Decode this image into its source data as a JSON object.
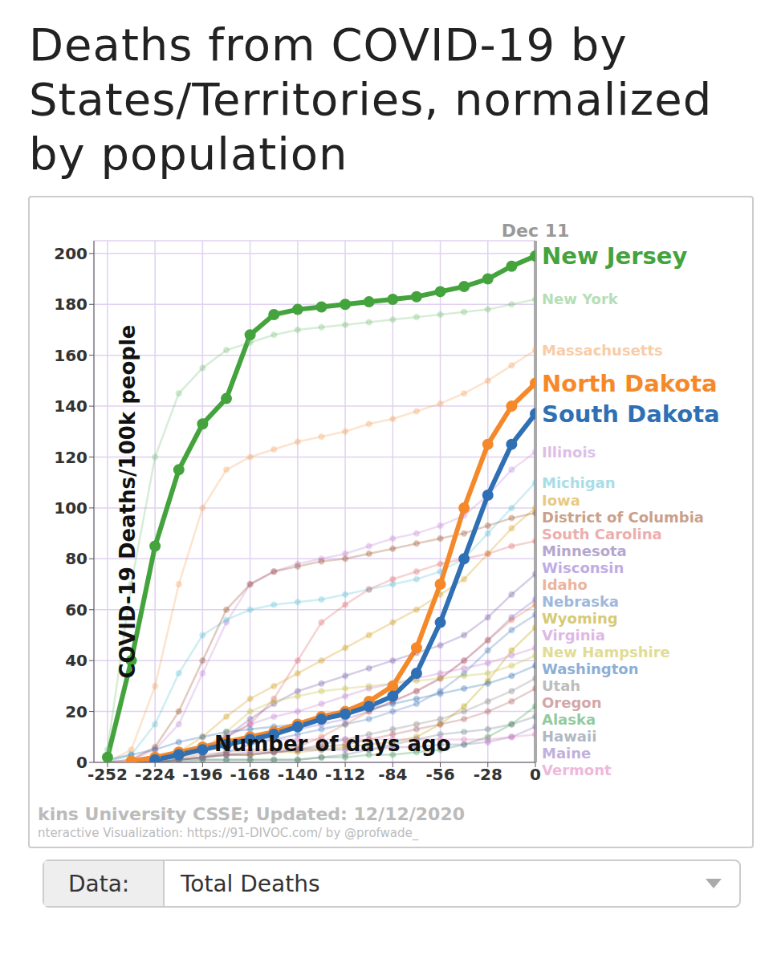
{
  "chart_data": {
    "type": "line",
    "title": "Deaths from COVID-19 by States/Territories, normalized by population",
    "x_label": "Number of days ago",
    "y_label": "COVID-19 Deaths/100k people",
    "annotations": [
      "Dec 11"
    ],
    "source": [
      "kins University CSSE; Updated: 12/12/2020",
      "nteractive Visualization: https://91-DIVOC.com/ by @profwade_"
    ],
    "x": [
      -252,
      -238,
      -224,
      -210,
      -196,
      -182,
      -168,
      -154,
      -140,
      -126,
      -112,
      -98,
      -84,
      -70,
      -56,
      -42,
      -28,
      -14,
      0
    ],
    "xlim": [
      -260,
      0
    ],
    "xticks": [
      -252,
      -224,
      -196,
      -168,
      -140,
      -112,
      -84,
      -56,
      -28,
      0
    ],
    "ylim": [
      0,
      205
    ],
    "yticks": [
      0,
      20,
      40,
      60,
      80,
      100,
      120,
      140,
      160,
      180,
      200
    ],
    "grid": true,
    "series": [
      {
        "name": "New Jersey",
        "color": "#44a33c",
        "line_style": "bold",
        "marker": "circle",
        "values": [
          2,
          40,
          85,
          115,
          133,
          143,
          168,
          176,
          178,
          179,
          180,
          181,
          182,
          183,
          185,
          187,
          190,
          195,
          199
        ]
      },
      {
        "name": "North Dakota",
        "color": "#f5892a",
        "line_style": "bold",
        "marker": "circle",
        "values": [
          null,
          0.5,
          2,
          4,
          6,
          8,
          10,
          12,
          15,
          18,
          20,
          24,
          30,
          45,
          70,
          100,
          125,
          140,
          149
        ]
      },
      {
        "name": "South Dakota",
        "color": "#2f6fb3",
        "line_style": "bold",
        "marker": "circle",
        "values": [
          null,
          null,
          1,
          3,
          5,
          7,
          9,
          11,
          14,
          17,
          19,
          22,
          26,
          35,
          55,
          80,
          105,
          125,
          137
        ]
      },
      {
        "name": "New York",
        "color": "#7cc47c",
        "line_style": "faded",
        "marker": "circle",
        "values": [
          5,
          70,
          120,
          145,
          155,
          162,
          165,
          168,
          170,
          171,
          172,
          173,
          174,
          175,
          176,
          177,
          178,
          180,
          182
        ]
      },
      {
        "name": "Massachusetts",
        "color": "#f4a460",
        "line_style": "faded",
        "marker": "circle",
        "values": [
          0,
          5,
          30,
          70,
          100,
          115,
          120,
          123,
          126,
          128,
          130,
          133,
          135,
          138,
          141,
          145,
          150,
          156,
          162
        ]
      },
      {
        "name": "Illinois",
        "color": "#c28ad6",
        "line_style": "faded",
        "marker": "circle",
        "values": [
          0,
          1,
          5,
          15,
          35,
          55,
          70,
          75,
          78,
          80,
          82,
          85,
          88,
          90,
          93,
          97,
          105,
          115,
          122
        ]
      },
      {
        "name": "Michigan",
        "color": "#5fc4d6",
        "line_style": "faded",
        "marker": "circle",
        "values": [
          0,
          3,
          15,
          35,
          50,
          56,
          60,
          62,
          63,
          64,
          66,
          68,
          70,
          72,
          75,
          80,
          90,
          100,
          110
        ]
      },
      {
        "name": "Iowa",
        "color": "#d4a017",
        "line_style": "faded",
        "marker": "circle",
        "values": [
          null,
          0,
          1,
          4,
          10,
          18,
          25,
          30,
          35,
          40,
          45,
          50,
          55,
          60,
          66,
          72,
          82,
          92,
          100
        ]
      },
      {
        "name": "District of Columbia",
        "color": "#a0522d",
        "line_style": "faded",
        "marker": "circle",
        "values": [
          0,
          1,
          6,
          20,
          40,
          60,
          70,
          75,
          77,
          79,
          80,
          82,
          84,
          86,
          88,
          90,
          93,
          96,
          98
        ]
      },
      {
        "name": "South Carolina",
        "color": "#e06c6c",
        "line_style": "faded",
        "marker": "circle",
        "values": [
          null,
          0,
          1,
          3,
          6,
          10,
          15,
          25,
          40,
          55,
          62,
          68,
          72,
          75,
          78,
          80,
          82,
          85,
          87
        ]
      },
      {
        "name": "Minnesota",
        "color": "#7a5ea8",
        "line_style": "faded",
        "marker": "circle",
        "values": [
          null,
          0,
          1,
          2,
          5,
          10,
          17,
          23,
          28,
          31,
          34,
          37,
          40,
          43,
          46,
          50,
          57,
          66,
          74
        ]
      },
      {
        "name": "Wisconsin",
        "color": "#8a6ad0",
        "line_style": "faded",
        "marker": "circle",
        "values": [
          null,
          0,
          1,
          3,
          5,
          8,
          10,
          12,
          13,
          15,
          17,
          20,
          24,
          28,
          33,
          40,
          48,
          57,
          64
        ]
      },
      {
        "name": "Idaho",
        "color": "#e0784a",
        "line_style": "faded",
        "marker": "circle",
        "values": [
          null,
          0,
          1,
          2,
          3,
          4,
          5,
          5,
          6,
          10,
          15,
          20,
          24,
          28,
          33,
          40,
          48,
          56,
          62
        ]
      },
      {
        "name": "Nebraska",
        "color": "#4f7fbf",
        "line_style": "faded",
        "marker": "circle",
        "values": [
          null,
          0,
          0,
          1,
          2,
          4,
          7,
          9,
          11,
          13,
          15,
          17,
          20,
          23,
          28,
          35,
          44,
          52,
          58
        ]
      },
      {
        "name": "Wyoming",
        "color": "#b8a000",
        "line_style": "faded",
        "marker": "circle",
        "values": [
          null,
          null,
          0,
          1,
          2,
          3,
          3,
          4,
          4,
          5,
          6,
          7,
          8,
          10,
          15,
          22,
          32,
          44,
          53
        ]
      },
      {
        "name": "Virginia",
        "color": "#c47fd0",
        "line_style": "faded",
        "marker": "circle",
        "values": [
          null,
          0,
          1,
          2,
          5,
          10,
          15,
          18,
          20,
          23,
          26,
          29,
          31,
          33,
          35,
          37,
          39,
          42,
          45
        ]
      },
      {
        "name": "New Hampshire",
        "color": "#c8c040",
        "line_style": "faded",
        "marker": "circle",
        "values": [
          null,
          0,
          1,
          2,
          5,
          12,
          20,
          24,
          26,
          28,
          29,
          30,
          31,
          32,
          33,
          34,
          35,
          38,
          42
        ]
      },
      {
        "name": "Washington",
        "color": "#2f6fb3",
        "line_style": "faded",
        "marker": "circle",
        "values": [
          1,
          3,
          5,
          8,
          10,
          12,
          13,
          14,
          15,
          17,
          19,
          21,
          23,
          25,
          27,
          29,
          31,
          34,
          38
        ]
      },
      {
        "name": "Utah",
        "color": "#888888",
        "line_style": "faded",
        "marker": "circle",
        "values": [
          null,
          0,
          0,
          1,
          2,
          3,
          3,
          4,
          5,
          7,
          9,
          11,
          13,
          15,
          17,
          20,
          24,
          28,
          33
        ]
      },
      {
        "name": "Oregon",
        "color": "#b06060",
        "line_style": "faded",
        "marker": "circle",
        "values": [
          null,
          0,
          0,
          1,
          2,
          3,
          3,
          4,
          5,
          6,
          7,
          9,
          11,
          13,
          15,
          17,
          20,
          24,
          29
        ]
      },
      {
        "name": "Alaska",
        "color": "#3aa050",
        "line_style": "faded",
        "marker": "circle",
        "values": [
          null,
          0,
          0,
          1,
          1,
          1,
          1,
          1,
          1,
          2,
          2,
          3,
          3,
          4,
          5,
          7,
          10,
          15,
          22
        ]
      },
      {
        "name": "Hawaii",
        "color": "#708090",
        "line_style": "faded",
        "marker": "circle",
        "values": [
          null,
          0,
          0,
          0,
          1,
          1,
          1,
          1,
          1,
          2,
          3,
          5,
          7,
          9,
          11,
          12,
          13,
          15,
          18
        ]
      },
      {
        "name": "Maine",
        "color": "#9070c0",
        "line_style": "faded",
        "marker": "circle",
        "values": [
          null,
          0,
          0,
          1,
          2,
          3,
          4,
          4,
          5,
          5,
          5,
          5,
          6,
          6,
          7,
          7,
          8,
          10,
          14
        ]
      },
      {
        "name": "Vermont",
        "color": "#e080c0",
        "line_style": "faded",
        "marker": "circle",
        "values": [
          null,
          0,
          1,
          4,
          7,
          8,
          9,
          9,
          9,
          9,
          9,
          9,
          9,
          9,
          9,
          9,
          9,
          10,
          11
        ]
      }
    ]
  },
  "controls": {
    "label": "Data:",
    "value": "Total Deaths"
  }
}
